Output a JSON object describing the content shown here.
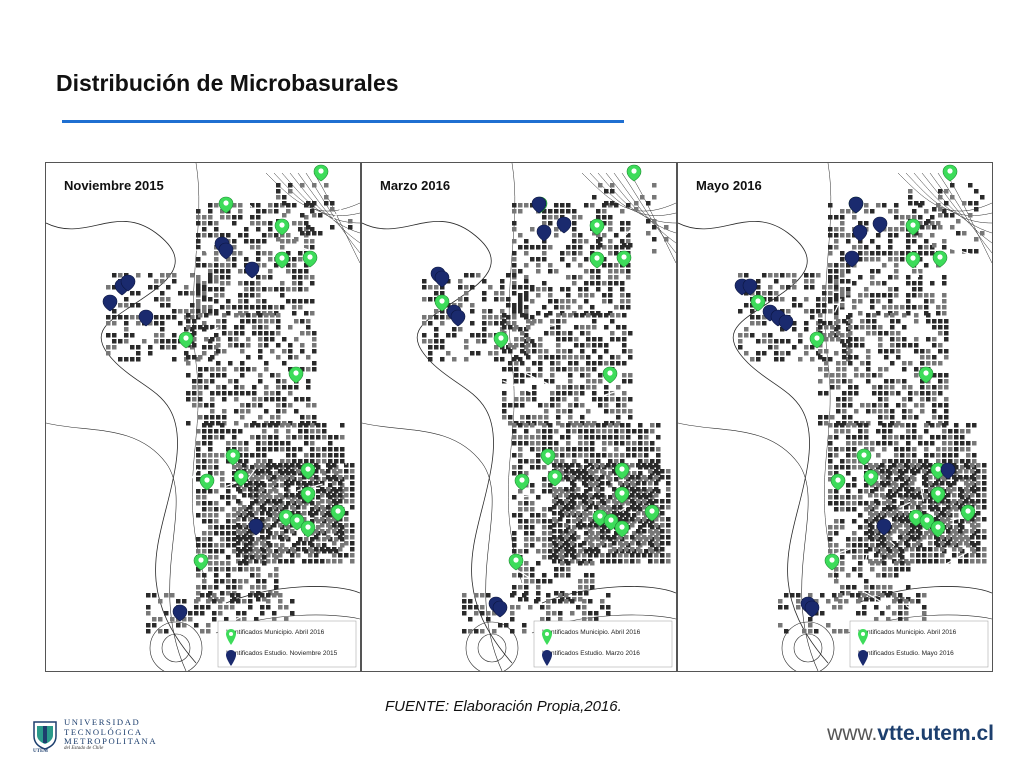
{
  "title": "Distribución de Microbasurales",
  "colors": {
    "accent_rule": "#1f6fd1",
    "pin_municipio": "#3ddc5a",
    "pin_estudio": "#1a2a6e",
    "map_ink": "#2a2a2a"
  },
  "panels": [
    {
      "label": "Noviembre 2015",
      "legend": [
        {
          "text": "Identificados Municipio. Abril 2016",
          "color_key": "pin_municipio"
        },
        {
          "text": "Identificados Estudio. Noviembre 2015",
          "color_key": "pin_estudio"
        }
      ]
    },
    {
      "label": "Marzo 2016",
      "legend": [
        {
          "text": "Identificados Municipio. Abril 2016",
          "color_key": "pin_municipio"
        },
        {
          "text": "Identificados Estudio. Marzo 2016",
          "color_key": "pin_estudio"
        }
      ]
    },
    {
      "label": "Mayo 2016",
      "legend": [
        {
          "text": "Identificados Municipio. Abril 2016",
          "color_key": "pin_municipio"
        },
        {
          "text": "Identificados Estudio. Mayo 2016",
          "color_key": "pin_estudio"
        }
      ]
    }
  ],
  "source": "FUENTE:  Elaboración Propia,2016.",
  "logo": {
    "line1": "UNIVERSIDAD",
    "line2": "TECNOLÓGICA",
    "line3": "METROPOLITANA",
    "sub": "del Estado de Chile",
    "abbr": "UTEM"
  },
  "website": {
    "prefix": "www.",
    "domain": "vtte.utem.cl"
  }
}
